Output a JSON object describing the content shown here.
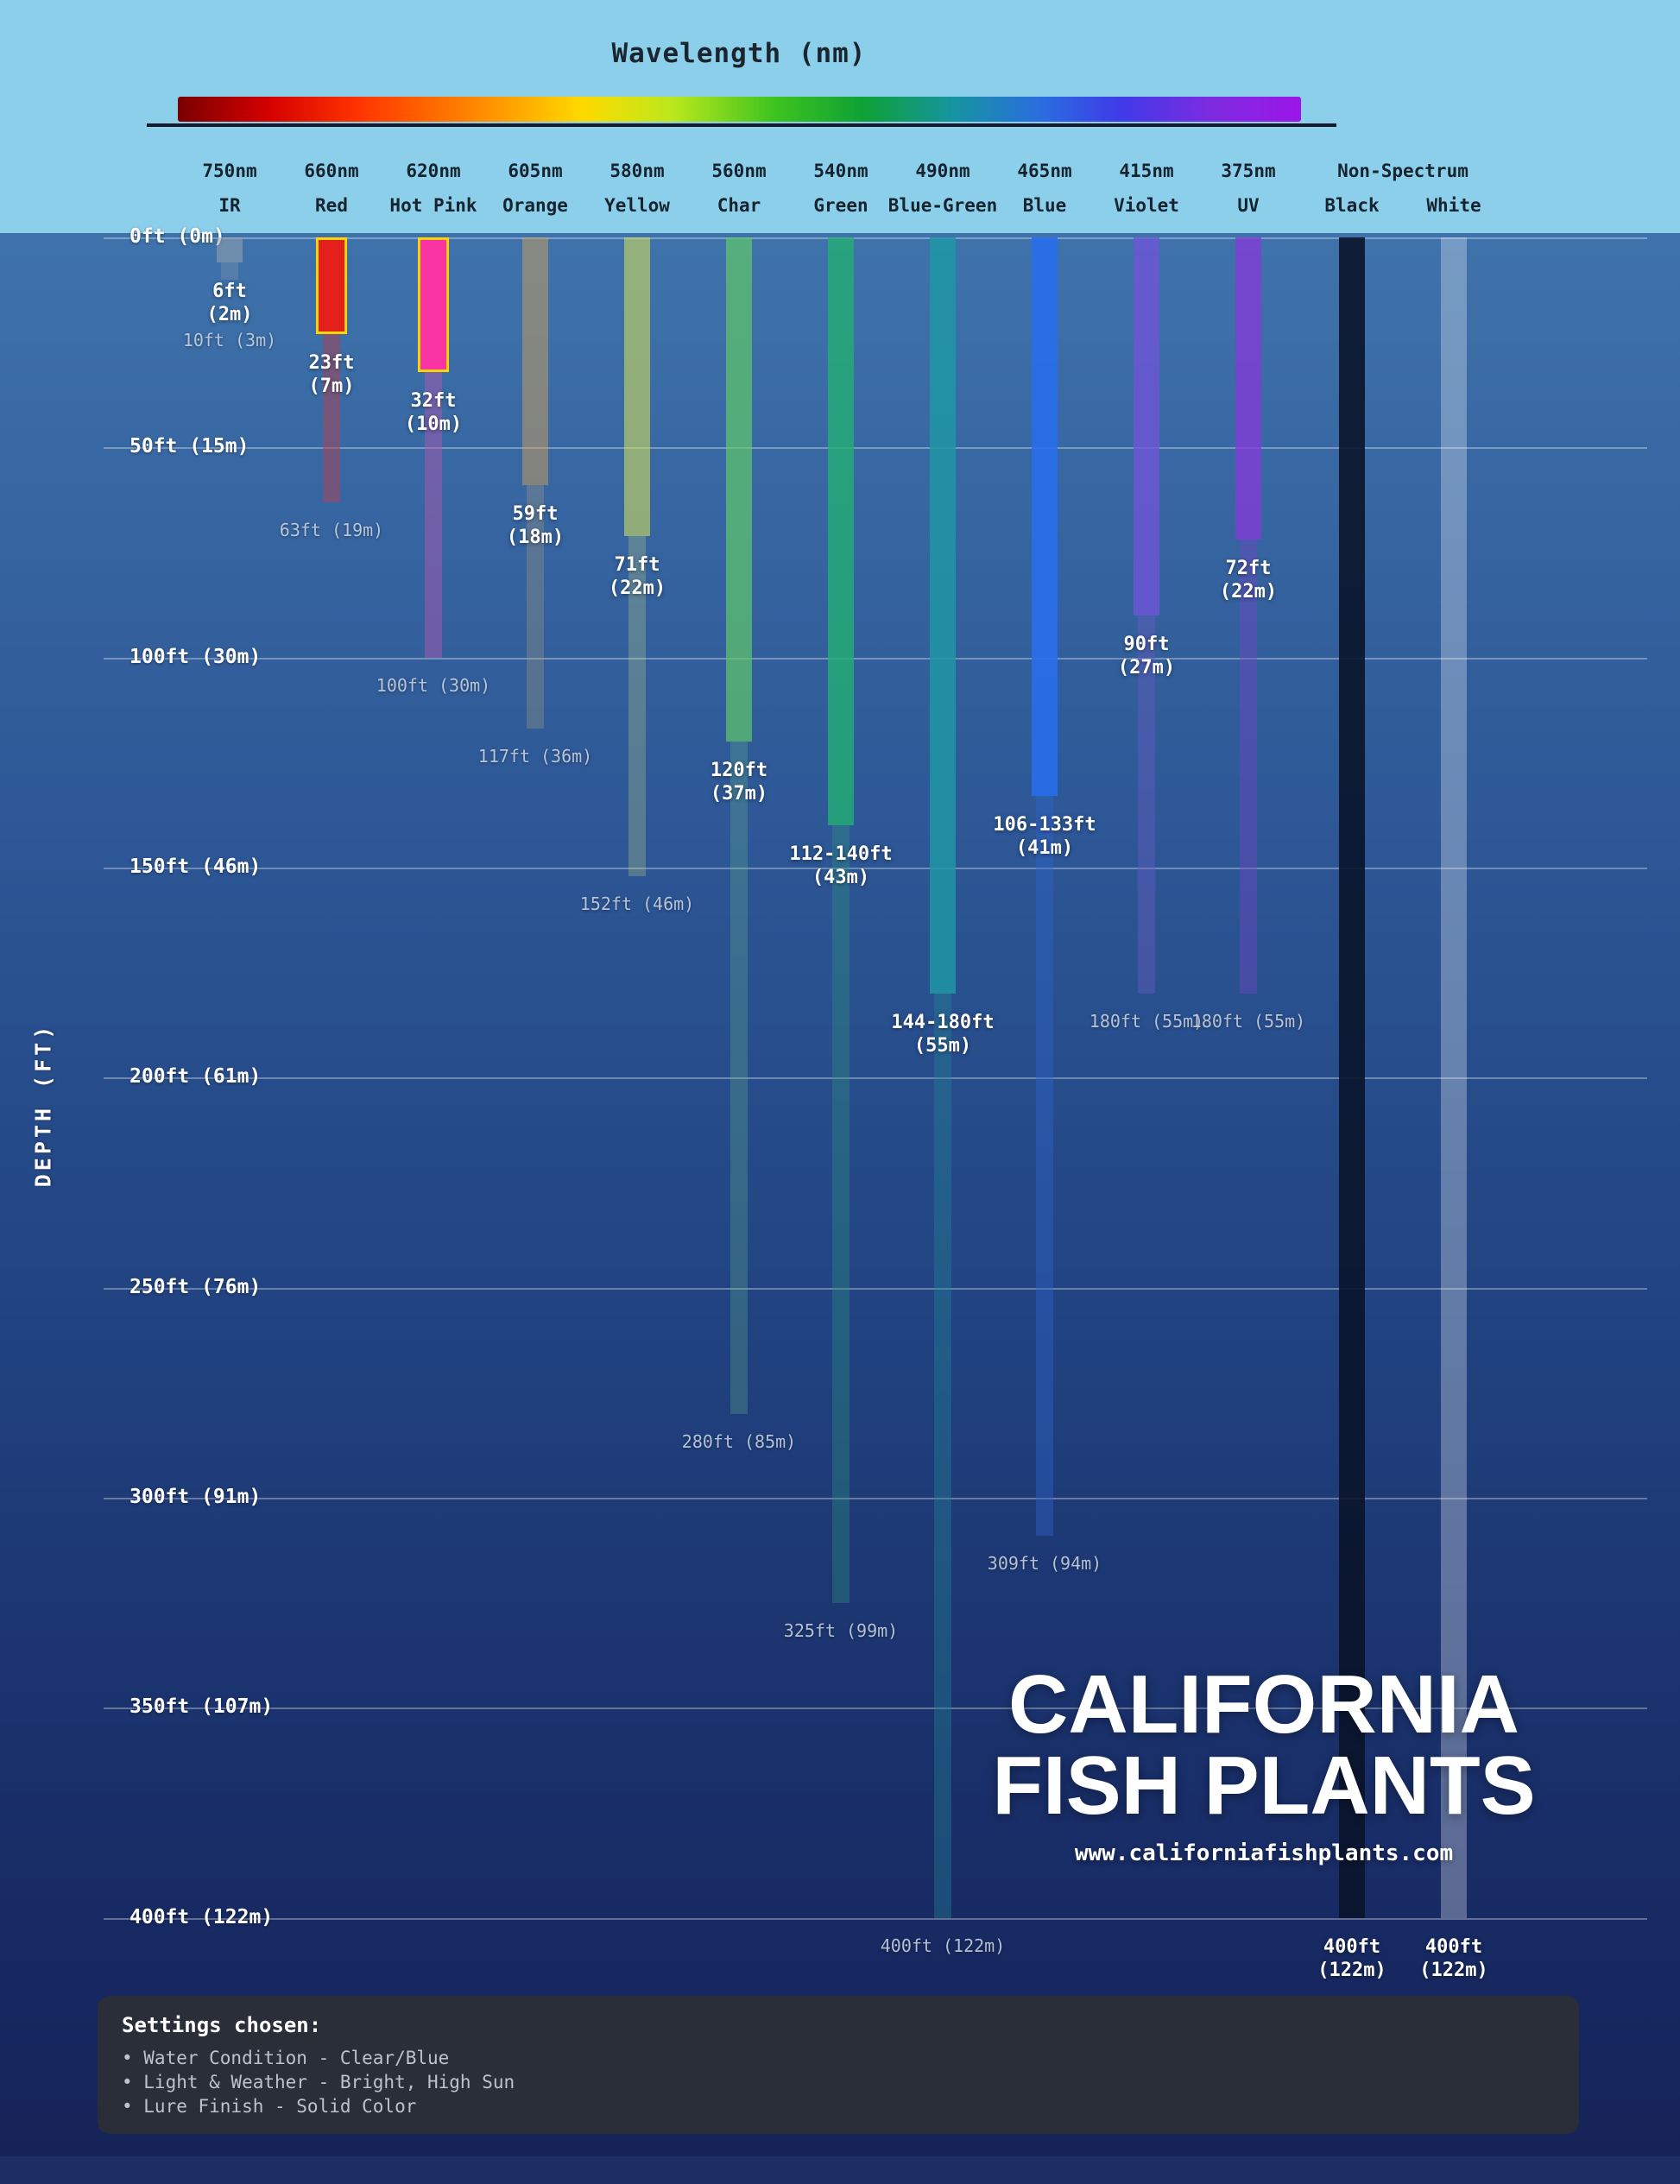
{
  "chart_data": {
    "type": "bar",
    "title": "Wavelength (nm)",
    "ylabel": "DEPTH (FT)",
    "non_spectrum_label": "Non-Spectrum",
    "max_depth_ft": 400,
    "depth_gridlines": [
      {
        "ft": 0,
        "label": "0ft (0m)"
      },
      {
        "ft": 50,
        "label": "50ft (15m)"
      },
      {
        "ft": 100,
        "label": "100ft (30m)"
      },
      {
        "ft": 150,
        "label": "150ft (46m)"
      },
      {
        "ft": 200,
        "label": "200ft (61m)"
      },
      {
        "ft": 250,
        "label": "250ft (76m)"
      },
      {
        "ft": 300,
        "label": "300ft (91m)"
      },
      {
        "ft": 350,
        "label": "350ft (107m)"
      },
      {
        "ft": 400,
        "label": "400ft (122m)"
      }
    ],
    "spectrum_stops": [
      {
        "color": "#7A0000",
        "pos": 0
      },
      {
        "color": "#D40000",
        "pos": 8
      },
      {
        "color": "#FF3300",
        "pos": 16
      },
      {
        "color": "#FF8C00",
        "pos": 27
      },
      {
        "color": "#FFD900",
        "pos": 36
      },
      {
        "color": "#BCE81C",
        "pos": 44
      },
      {
        "color": "#3FC41F",
        "pos": 53
      },
      {
        "color": "#0EA135",
        "pos": 61
      },
      {
        "color": "#1694A0",
        "pos": 69
      },
      {
        "color": "#2A6CE0",
        "pos": 77
      },
      {
        "color": "#3F3AE8",
        "pos": 84
      },
      {
        "color": "#7E2BE0",
        "pos": 92
      },
      {
        "color": "#9C15E8",
        "pos": 100
      }
    ],
    "columns": [
      {
        "wavelength": "750nm",
        "name": "IR",
        "visible_to_ft": 6,
        "fades_to_ft": 10,
        "label_main": "6ft",
        "label_sub": "(2m)",
        "faint_label": "10ft (3m)",
        "bright_color": "rgba(150,162,172,0.55)",
        "faded_color": "rgba(150,162,172,0.28)",
        "outline": null
      },
      {
        "wavelength": "660nm",
        "name": "Red",
        "visible_to_ft": 23,
        "fades_to_ft": 63,
        "label_main": "23ft",
        "label_sub": "(7m)",
        "faint_label": "63ft (19m)",
        "bright_color": "#E3201B",
        "faded_color": "rgba(165,70,90,0.55)",
        "outline": "#FFD400"
      },
      {
        "wavelength": "620nm",
        "name": "Hot Pink",
        "visible_to_ft": 32,
        "fades_to_ft": 100,
        "label_main": "32ft",
        "label_sub": "(10m)",
        "faint_label": "100ft (30m)",
        "bright_color": "#FA35A3",
        "faded_color": "rgba(170,90,175,0.5)",
        "outline": "#FFD400"
      },
      {
        "wavelength": "605nm",
        "name": "Orange",
        "visible_to_ft": 59,
        "fades_to_ft": 117,
        "label_main": "59ft",
        "label_sub": "(18m)",
        "faint_label": "117ft (36m)",
        "bright_color": "rgba(205,160,90,0.5)",
        "faded_color": "rgba(185,165,120,0.28)",
        "outline": null
      },
      {
        "wavelength": "580nm",
        "name": "Yellow",
        "visible_to_ft": 71,
        "fades_to_ft": 152,
        "label_main": "71ft",
        "label_sub": "(22m)",
        "faint_label": "152ft (46m)",
        "bright_color": "rgba(205,220,95,0.6)",
        "faded_color": "rgba(185,205,135,0.3)",
        "outline": null
      },
      {
        "wavelength": "560nm",
        "name": "Char",
        "visible_to_ft": 120,
        "fades_to_ft": 280,
        "label_main": "120ft",
        "label_sub": "(37m)",
        "faint_label": "280ft (85m)",
        "bright_color": "rgba(95,200,105,0.7)",
        "faded_color": "rgba(105,185,135,0.28)",
        "outline": null
      },
      {
        "wavelength": "540nm",
        "name": "Green",
        "visible_to_ft": 140,
        "fades_to_ft": 325,
        "label_main": "112-140ft",
        "label_sub": "(43m)",
        "faint_label": "325ft (99m)",
        "bright_color": "rgba(35,175,115,0.8)",
        "faded_color": "rgba(45,150,125,0.35)",
        "outline": null
      },
      {
        "wavelength": "490nm",
        "name": "Blue-Green",
        "visible_to_ft": 180,
        "fades_to_ft": 400,
        "label_main": "144-180ft",
        "label_sub": "(55m)",
        "faint_label": "400ft (122m)",
        "bright_color": "rgba(30,150,165,0.85)",
        "faded_color": "rgba(35,130,150,0.4)",
        "outline": null
      },
      {
        "wavelength": "465nm",
        "name": "Blue",
        "visible_to_ft": 133,
        "fades_to_ft": 309,
        "label_main": "106-133ft",
        "label_sub": "(41m)",
        "faint_label": "309ft (94m)",
        "bright_color": "rgba(40,110,235,0.9)",
        "faded_color": "rgba(45,100,205,0.42)",
        "outline": null
      },
      {
        "wavelength": "415nm",
        "name": "Violet",
        "visible_to_ft": 90,
        "fades_to_ft": 180,
        "label_main": "90ft",
        "label_sub": "(27m)",
        "faint_label": "180ft (55m)",
        "bright_color": "rgba(110,85,215,0.8)",
        "faded_color": "rgba(105,90,195,0.42)",
        "outline": null
      },
      {
        "wavelength": "375nm",
        "name": "UV",
        "visible_to_ft": 72,
        "fades_to_ft": 180,
        "label_main": "72ft",
        "label_sub": "(22m)",
        "faint_label": "180ft (55m)",
        "bright_color": "rgba(130,60,215,0.8)",
        "faded_color": "rgba(115,70,195,0.42)",
        "outline": null
      },
      {
        "wavelength": null,
        "name": "Black",
        "visible_to_ft": 400,
        "fades_to_ft": 400,
        "label_main": "400ft",
        "label_sub": "(122m)",
        "faint_label": null,
        "bright_color": "rgba(10,20,42,0.9)",
        "faded_color": null,
        "outline": null
      },
      {
        "wavelength": null,
        "name": "White",
        "visible_to_ft": 400,
        "fades_to_ft": 400,
        "label_main": "400ft",
        "label_sub": "(122m)",
        "faint_label": null,
        "bright_color": "rgba(235,242,250,0.32)",
        "faded_color": null,
        "outline": null
      }
    ]
  },
  "colors": {
    "sky": "#8CCFEA",
    "water_top": "#4A80B6",
    "water_bottom": "#152257",
    "highlight_outline": "#FFD400",
    "gridline": "rgba(255,255,255,0.32)",
    "header_text": "#16242F",
    "footer_strip": "#1E2E64"
  },
  "watermark": {
    "line1": "CALIFORNIA",
    "line2": "FISH PLANTS",
    "url": "www.californiafishplants.com"
  },
  "settings_panel": {
    "title": "Settings chosen:",
    "items": [
      "Water Condition - Clear/Blue",
      "Light & Weather - Bright, High Sun",
      "Lure Finish - Solid Color"
    ]
  }
}
